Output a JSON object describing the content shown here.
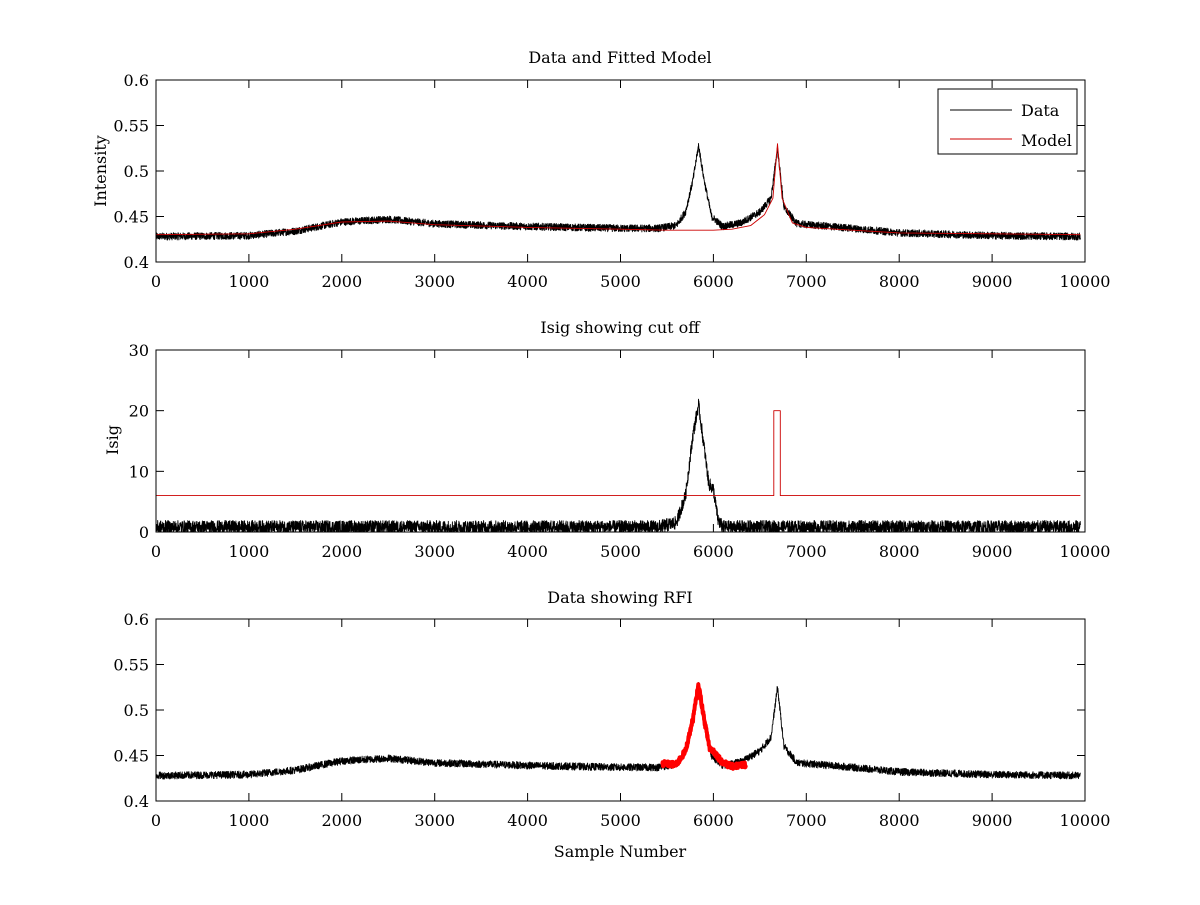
{
  "chart_data": [
    {
      "type": "line",
      "title": "Data and Fitted Model",
      "xlabel": "",
      "ylabel": "Intensity",
      "xlim": [
        0,
        10000
      ],
      "ylim": [
        0.4,
        0.6
      ],
      "xticks": [
        0,
        1000,
        2000,
        3000,
        4000,
        5000,
        6000,
        7000,
        8000,
        9000,
        10000
      ],
      "yticks": [
        0.4,
        0.45,
        0.5,
        0.55,
        0.6
      ],
      "ytick_labels": [
        "0.4",
        "0.45",
        "0.5",
        "0.55",
        "0.6"
      ],
      "grid": false,
      "legend": {
        "placement": "top-right",
        "entries": [
          "Data",
          "Model"
        ]
      },
      "series": [
        {
          "name": "Data",
          "color": "#000000",
          "baseline_x": [
            0,
            1000,
            1500,
            2000,
            2500,
            3000,
            4000,
            5000,
            5400,
            5600,
            5700,
            5780,
            5840,
            5900,
            5980,
            6100,
            6300,
            6500,
            6620,
            6690,
            6760,
            6900,
            7500,
            8000,
            9000,
            9950
          ],
          "baseline_y": [
            0.428,
            0.429,
            0.434,
            0.444,
            0.447,
            0.442,
            0.439,
            0.437,
            0.437,
            0.44,
            0.455,
            0.49,
            0.528,
            0.49,
            0.45,
            0.439,
            0.443,
            0.455,
            0.47,
            0.525,
            0.46,
            0.442,
            0.437,
            0.432,
            0.429,
            0.428
          ],
          "noise_amplitude": 0.004
        },
        {
          "name": "Model",
          "color": "#cc0000",
          "x": [
            0,
            1000,
            1500,
            2000,
            2500,
            3000,
            4000,
            5000,
            5500,
            6000,
            6200,
            6400,
            6550,
            6640,
            6690,
            6740,
            6850,
            7000,
            7500,
            8000,
            9000,
            9950
          ],
          "y": [
            0.43,
            0.431,
            0.436,
            0.444,
            0.445,
            0.441,
            0.438,
            0.436,
            0.435,
            0.435,
            0.436,
            0.44,
            0.452,
            0.47,
            0.53,
            0.47,
            0.443,
            0.438,
            0.435,
            0.432,
            0.431,
            0.43
          ]
        }
      ]
    },
    {
      "type": "line",
      "title": "Isig showing cut off",
      "xlabel": "",
      "ylabel": "Isig",
      "xlim": [
        0,
        10000
      ],
      "ylim": [
        0,
        30
      ],
      "xticks": [
        0,
        1000,
        2000,
        3000,
        4000,
        5000,
        6000,
        7000,
        8000,
        9000,
        10000
      ],
      "yticks": [
        0,
        10,
        20,
        30
      ],
      "ytick_labels": [
        "0",
        "10",
        "20",
        "30"
      ],
      "grid": false,
      "series": [
        {
          "color": "#000000",
          "baseline_x": [
            0,
            5400,
            5600,
            5700,
            5780,
            5840,
            5900,
            5950,
            6000,
            6050,
            6100,
            9950
          ],
          "baseline_y": [
            0.8,
            0.8,
            1.5,
            6,
            16,
            21,
            14,
            8,
            7,
            2,
            0.8,
            0.8
          ],
          "noise_amplitude": 1.1
        },
        {
          "color": "#cc0000",
          "x": [
            0,
            6650,
            6650,
            6720,
            6720,
            9950
          ],
          "y": [
            6,
            6,
            20,
            20,
            6,
            6
          ]
        }
      ]
    },
    {
      "type": "line",
      "title": "Data showing RFI",
      "xlabel": "Sample Number",
      "ylabel": "",
      "xlim": [
        0,
        10000
      ],
      "ylim": [
        0.4,
        0.6
      ],
      "xticks": [
        0,
        1000,
        2000,
        3000,
        4000,
        5000,
        6000,
        7000,
        8000,
        9000,
        10000
      ],
      "yticks": [
        0.4,
        0.45,
        0.5,
        0.55,
        0.6
      ],
      "ytick_labels": [
        "0.4",
        "0.45",
        "0.5",
        "0.55",
        "0.6"
      ],
      "grid": false,
      "series": [
        {
          "color": "#000000",
          "baseline_x": [
            0,
            1000,
            1500,
            2000,
            2500,
            3000,
            4000,
            5000,
            5400,
            5600,
            5700,
            5780,
            5840,
            5900,
            5980,
            6100,
            6300,
            6500,
            6620,
            6690,
            6760,
            6900,
            7500,
            8000,
            9000,
            9950
          ],
          "baseline_y": [
            0.428,
            0.429,
            0.434,
            0.444,
            0.447,
            0.442,
            0.439,
            0.437,
            0.437,
            0.44,
            0.455,
            0.49,
            0.528,
            0.49,
            0.45,
            0.439,
            0.443,
            0.455,
            0.47,
            0.525,
            0.46,
            0.442,
            0.437,
            0.432,
            0.429,
            0.428
          ],
          "noise_amplitude": 0.004
        },
        {
          "color": "#ff0000",
          "marker": "thick",
          "x_range": [
            5450,
            6350
          ],
          "baseline_x": [
            5450,
            5600,
            5700,
            5780,
            5840,
            5900,
            5960,
            6000,
            6100,
            6200,
            6350
          ],
          "baseline_y": [
            0.441,
            0.44,
            0.455,
            0.49,
            0.528,
            0.49,
            0.458,
            0.455,
            0.442,
            0.438,
            0.44
          ],
          "noise_amplitude": 0.003
        }
      ]
    }
  ]
}
